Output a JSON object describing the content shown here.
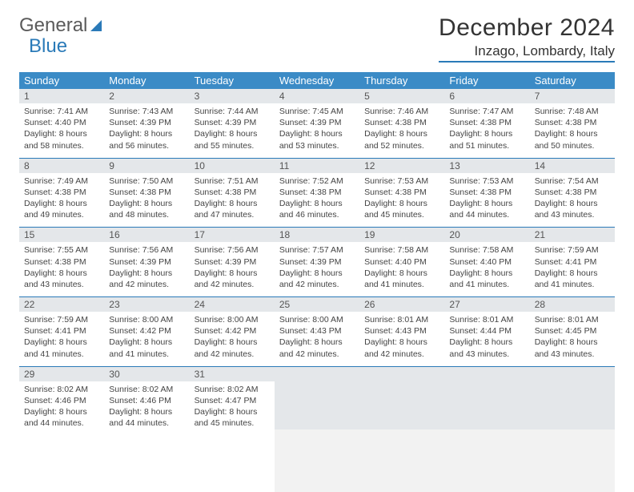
{
  "logo": {
    "part1": "General",
    "part2": "Blue"
  },
  "title": {
    "month": "December 2024",
    "location": "Inzago, Lombardy, Italy"
  },
  "colors": {
    "header_bg": "#3b8bc6",
    "header_fg": "#ffffff",
    "accent": "#2a7ab8",
    "daynum_bg": "#e4e7ea",
    "text": "#333333",
    "body_text": "#444444"
  },
  "weekdays": [
    "Sunday",
    "Monday",
    "Tuesday",
    "Wednesday",
    "Thursday",
    "Friday",
    "Saturday"
  ],
  "weeks": [
    [
      {
        "n": 1,
        "sunrise": "7:41 AM",
        "sunset": "4:40 PM",
        "daylight": "8 hours and 58 minutes."
      },
      {
        "n": 2,
        "sunrise": "7:43 AM",
        "sunset": "4:39 PM",
        "daylight": "8 hours and 56 minutes."
      },
      {
        "n": 3,
        "sunrise": "7:44 AM",
        "sunset": "4:39 PM",
        "daylight": "8 hours and 55 minutes."
      },
      {
        "n": 4,
        "sunrise": "7:45 AM",
        "sunset": "4:39 PM",
        "daylight": "8 hours and 53 minutes."
      },
      {
        "n": 5,
        "sunrise": "7:46 AM",
        "sunset": "4:38 PM",
        "daylight": "8 hours and 52 minutes."
      },
      {
        "n": 6,
        "sunrise": "7:47 AM",
        "sunset": "4:38 PM",
        "daylight": "8 hours and 51 minutes."
      },
      {
        "n": 7,
        "sunrise": "7:48 AM",
        "sunset": "4:38 PM",
        "daylight": "8 hours and 50 minutes."
      }
    ],
    [
      {
        "n": 8,
        "sunrise": "7:49 AM",
        "sunset": "4:38 PM",
        "daylight": "8 hours and 49 minutes."
      },
      {
        "n": 9,
        "sunrise": "7:50 AM",
        "sunset": "4:38 PM",
        "daylight": "8 hours and 48 minutes."
      },
      {
        "n": 10,
        "sunrise": "7:51 AM",
        "sunset": "4:38 PM",
        "daylight": "8 hours and 47 minutes."
      },
      {
        "n": 11,
        "sunrise": "7:52 AM",
        "sunset": "4:38 PM",
        "daylight": "8 hours and 46 minutes."
      },
      {
        "n": 12,
        "sunrise": "7:53 AM",
        "sunset": "4:38 PM",
        "daylight": "8 hours and 45 minutes."
      },
      {
        "n": 13,
        "sunrise": "7:53 AM",
        "sunset": "4:38 PM",
        "daylight": "8 hours and 44 minutes."
      },
      {
        "n": 14,
        "sunrise": "7:54 AM",
        "sunset": "4:38 PM",
        "daylight": "8 hours and 43 minutes."
      }
    ],
    [
      {
        "n": 15,
        "sunrise": "7:55 AM",
        "sunset": "4:38 PM",
        "daylight": "8 hours and 43 minutes."
      },
      {
        "n": 16,
        "sunrise": "7:56 AM",
        "sunset": "4:39 PM",
        "daylight": "8 hours and 42 minutes."
      },
      {
        "n": 17,
        "sunrise": "7:56 AM",
        "sunset": "4:39 PM",
        "daylight": "8 hours and 42 minutes."
      },
      {
        "n": 18,
        "sunrise": "7:57 AM",
        "sunset": "4:39 PM",
        "daylight": "8 hours and 42 minutes."
      },
      {
        "n": 19,
        "sunrise": "7:58 AM",
        "sunset": "4:40 PM",
        "daylight": "8 hours and 41 minutes."
      },
      {
        "n": 20,
        "sunrise": "7:58 AM",
        "sunset": "4:40 PM",
        "daylight": "8 hours and 41 minutes."
      },
      {
        "n": 21,
        "sunrise": "7:59 AM",
        "sunset": "4:41 PM",
        "daylight": "8 hours and 41 minutes."
      }
    ],
    [
      {
        "n": 22,
        "sunrise": "7:59 AM",
        "sunset": "4:41 PM",
        "daylight": "8 hours and 41 minutes."
      },
      {
        "n": 23,
        "sunrise": "8:00 AM",
        "sunset": "4:42 PM",
        "daylight": "8 hours and 41 minutes."
      },
      {
        "n": 24,
        "sunrise": "8:00 AM",
        "sunset": "4:42 PM",
        "daylight": "8 hours and 42 minutes."
      },
      {
        "n": 25,
        "sunrise": "8:00 AM",
        "sunset": "4:43 PM",
        "daylight": "8 hours and 42 minutes."
      },
      {
        "n": 26,
        "sunrise": "8:01 AM",
        "sunset": "4:43 PM",
        "daylight": "8 hours and 42 minutes."
      },
      {
        "n": 27,
        "sunrise": "8:01 AM",
        "sunset": "4:44 PM",
        "daylight": "8 hours and 43 minutes."
      },
      {
        "n": 28,
        "sunrise": "8:01 AM",
        "sunset": "4:45 PM",
        "daylight": "8 hours and 43 minutes."
      }
    ],
    [
      {
        "n": 29,
        "sunrise": "8:02 AM",
        "sunset": "4:46 PM",
        "daylight": "8 hours and 44 minutes."
      },
      {
        "n": 30,
        "sunrise": "8:02 AM",
        "sunset": "4:46 PM",
        "daylight": "8 hours and 44 minutes."
      },
      {
        "n": 31,
        "sunrise": "8:02 AM",
        "sunset": "4:47 PM",
        "daylight": "8 hours and 45 minutes."
      },
      null,
      null,
      null,
      null
    ]
  ],
  "labels": {
    "sunrise": "Sunrise:",
    "sunset": "Sunset:",
    "daylight": "Daylight:"
  }
}
